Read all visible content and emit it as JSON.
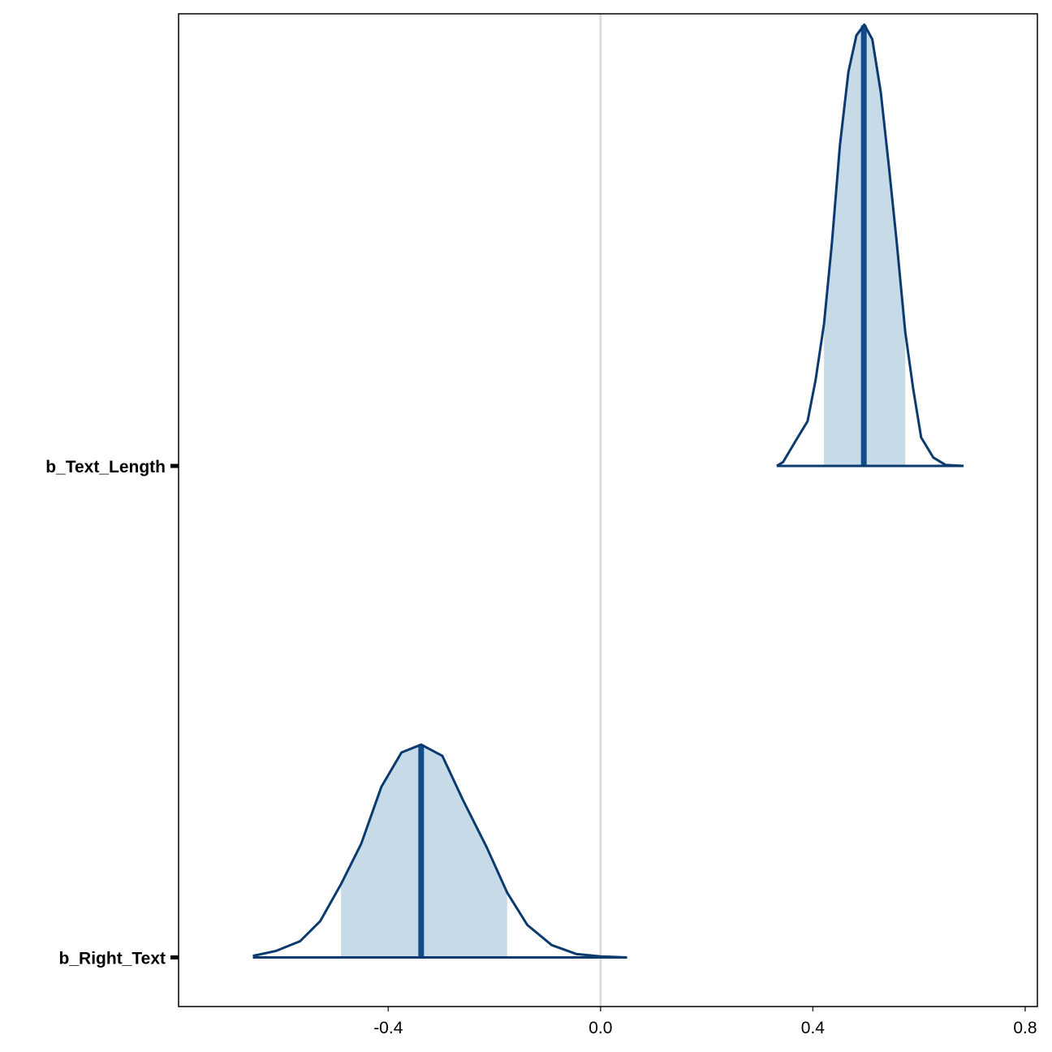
{
  "chart_data": {
    "type": "areas",
    "categories": [
      "b_Right_Text",
      "b_Text_Length"
    ],
    "xlim": [
      -0.795,
      0.823
    ],
    "xticks": [
      {
        "value": -0.4,
        "label": "-0.4"
      },
      {
        "value": 0,
        "label": "0.0"
      },
      {
        "value": 0.4,
        "label": "0.4"
      },
      {
        "value": 0.8,
        "label": "0.8"
      }
    ],
    "ylim": [
      0.9,
      2.92
    ],
    "vline": 0,
    "fill_color": "#c6dae8",
    "line_color": "#0b3a6e",
    "median_color": "#104b8a",
    "series": [
      {
        "name": "b_Right_Text",
        "x": [
          -0.655,
          -0.612,
          -0.566,
          -0.528,
          -0.489,
          -0.451,
          -0.413,
          -0.375,
          -0.338,
          -0.298,
          -0.26,
          -0.214,
          -0.176,
          -0.138,
          -0.092,
          -0.046,
          0,
          0.05
        ],
        "density": [
          0.003,
          0.013,
          0.033,
          0.074,
          0.149,
          0.231,
          0.347,
          0.417,
          0.433,
          0.41,
          0.322,
          0.223,
          0.132,
          0.066,
          0.025,
          0.007,
          0.002,
          0
        ],
        "median": -0.338,
        "interval": [
          -0.489,
          -0.176
        ]
      },
      {
        "name": "b_Text_Length",
        "x": [
          0.332,
          0.344,
          0.367,
          0.39,
          0.405,
          0.421,
          0.436,
          0.451,
          0.467,
          0.482,
          0.497,
          0.512,
          0.528,
          0.543,
          0.558,
          0.574,
          0.589,
          0.604,
          0.627,
          0.65,
          0.684
        ],
        "density": [
          0,
          0.008,
          0.05,
          0.091,
          0.174,
          0.289,
          0.455,
          0.653,
          0.802,
          0.876,
          0.898,
          0.868,
          0.76,
          0.612,
          0.455,
          0.273,
          0.157,
          0.058,
          0.017,
          0.002,
          0
        ],
        "median": 0.496,
        "interval": [
          0.421,
          0.574
        ]
      }
    ]
  }
}
